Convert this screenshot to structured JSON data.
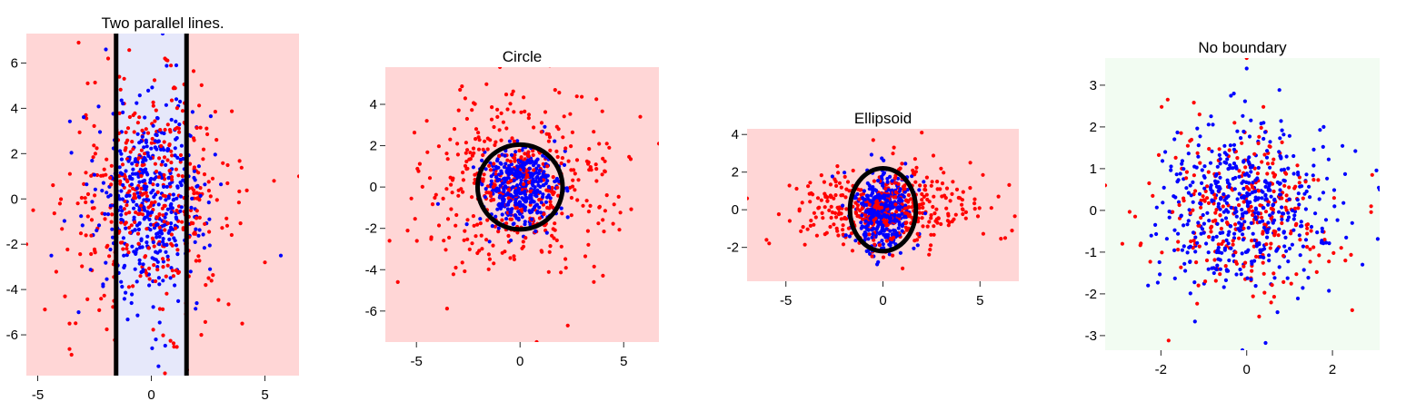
{
  "chart_data": [
    {
      "type": "scatter",
      "title": "Two parallel lines.",
      "xlim": [
        -5.5,
        6.5
      ],
      "ylim": [
        -7.8,
        7.3
      ],
      "xticks": [
        -5,
        0,
        5
      ],
      "xtick_labels": [
        "-5",
        "0",
        "5"
      ],
      "yticks": [
        -6,
        -4,
        -2,
        0,
        2,
        4,
        6
      ],
      "ytick_labels": [
        "-6",
        "-4",
        "-2",
        "0",
        "2",
        "4",
        "6"
      ],
      "background_color": "#FFD6D6",
      "region_color": "#E6E8FA",
      "boundary_color": "#000000",
      "region": {
        "shape": "vertical-band",
        "x": [
          -1.55,
          1.55
        ]
      },
      "boundary": {
        "shape": "vertical-lines",
        "x": [
          -1.55,
          1.55
        ]
      },
      "series": [
        {
          "color": "#FF0000",
          "distribution": {
            "sx": 1.8,
            "sy": 2.4,
            "cx": 0,
            "cy": 0
          },
          "count": 420,
          "points": [
            [
              -3.2,
              6.9
            ],
            [
              -2.8,
              5.1
            ],
            [
              -1.9,
              6.2
            ],
            [
              0.6,
              6.2
            ],
            [
              2.7,
              0.9
            ],
            [
              5.4,
              0.8
            ],
            [
              6.5,
              1.0
            ],
            [
              5.0,
              -2.8
            ],
            [
              4.0,
              -5.5
            ],
            [
              -5.5,
              -2.0
            ],
            [
              -5.2,
              -0.5
            ],
            [
              -3.8,
              -4.3
            ],
            [
              -3.6,
              -5.5
            ],
            [
              2.2,
              -6.0
            ],
            [
              0.6,
              -7.7
            ]
          ]
        },
        {
          "color": "#0000FF",
          "distribution": {
            "sx": 1.2,
            "sy": 2.2,
            "cx": 0,
            "cy": 0
          },
          "count": 420,
          "points": [
            [
              0.5,
              7.3
            ],
            [
              -2.0,
              6.6
            ],
            [
              1.1,
              5.9
            ],
            [
              5.7,
              -2.5
            ],
            [
              -3.2,
              -5.0
            ],
            [
              0.2,
              -6.2
            ],
            [
              2.0,
              -4.6
            ],
            [
              -4.4,
              -2.5
            ]
          ]
        }
      ]
    },
    {
      "type": "scatter",
      "title": "Circle",
      "xlim": [
        -6.5,
        6.7
      ],
      "ylim": [
        -7.5,
        5.8
      ],
      "xticks": [
        -5,
        0,
        5
      ],
      "xtick_labels": [
        "-5",
        "0",
        "5"
      ],
      "yticks": [
        -6,
        -4,
        -2,
        0,
        2,
        4
      ],
      "ytick_labels": [
        "-6",
        "-4",
        "-2",
        "0",
        "2",
        "4"
      ],
      "background_color": "#FFD6D6",
      "boundary_color": "#000000",
      "boundary": {
        "shape": "ellipse",
        "cx": 0,
        "cy": 0,
        "rx": 2.05,
        "ry": 2.05
      },
      "series": [
        {
          "color": "#FF0000",
          "distribution": {
            "sx": 2.2,
            "sy": 2.2,
            "cx": 0,
            "cy": 0
          },
          "count": 420,
          "points": [
            [
              6.7,
              2.1
            ],
            [
              -5.9,
              -4.6
            ],
            [
              -6.3,
              -2.6
            ],
            [
              0.8,
              -7.5
            ],
            [
              2.3,
              -6.7
            ],
            [
              4.3,
              1.9
            ],
            [
              5.8,
              3.4
            ],
            [
              -4.5,
              3.2
            ],
            [
              -3.1,
              -3.9
            ]
          ]
        },
        {
          "color": "#0000FF",
          "distribution": {
            "sx": 0.9,
            "sy": 0.9,
            "cx": 0,
            "cy": 0
          },
          "count": 420,
          "points": []
        }
      ]
    },
    {
      "type": "scatter",
      "title": "Ellipsoid",
      "xlim": [
        -7.0,
        7.0
      ],
      "ylim": [
        -3.8,
        4.3
      ],
      "xticks": [
        -5,
        0,
        5
      ],
      "xtick_labels": [
        "-5",
        "0",
        "5"
      ],
      "yticks": [
        -2,
        0,
        2,
        4
      ],
      "ytick_labels": [
        "-2",
        "0",
        "2",
        "4"
      ],
      "background_color": "#FFD6D6",
      "boundary_color": "#000000",
      "boundary": {
        "shape": "ellipse",
        "cx": 0,
        "cy": 0,
        "rx": 1.7,
        "ry": 2.2
      },
      "series": [
        {
          "color": "#FF0000",
          "distribution": {
            "sx": 2.3,
            "sy": 1.1,
            "cx": 0,
            "cy": 0
          },
          "count": 420,
          "points": [
            [
              -7.0,
              0.6
            ],
            [
              6.3,
              -1.5
            ],
            [
              -6.0,
              -1.6
            ],
            [
              4.5,
              2.5
            ],
            [
              2.0,
              4.1
            ],
            [
              -0.5,
              3.7
            ]
          ]
        },
        {
          "color": "#0000FF",
          "distribution": {
            "sx": 0.8,
            "sy": 1.0,
            "cx": 0,
            "cy": 0
          },
          "count": 420,
          "points": []
        }
      ]
    },
    {
      "type": "scatter",
      "title": "No boundary",
      "xlim": [
        -3.3,
        3.1
      ],
      "ylim": [
        -3.35,
        3.65
      ],
      "xticks": [
        -2,
        0,
        2
      ],
      "xtick_labels": [
        "-2",
        "0",
        "2"
      ],
      "yticks": [
        -3,
        -2,
        -1,
        0,
        1,
        2,
        3
      ],
      "ytick_labels": [
        "-3",
        "-2",
        "-1",
        "0",
        "1",
        "2",
        "3"
      ],
      "background_color": "#F2FCF2",
      "series": [
        {
          "color": "#FF0000",
          "distribution": {
            "sx": 1.0,
            "sy": 1.0,
            "cx": 0,
            "cy": 0
          },
          "count": 300,
          "points": [
            [
              0,
              3.65
            ],
            [
              -3.3,
              0.6
            ],
            [
              2.9,
              0.1
            ],
            [
              -1.1,
              2.3
            ],
            [
              -2.9,
              -0.8
            ],
            [
              2.3,
              -1.2
            ]
          ]
        },
        {
          "color": "#0000FF",
          "distribution": {
            "sx": 1.0,
            "sy": 1.0,
            "cx": 0,
            "cy": 0
          },
          "count": 500,
          "points": [
            [
              -0.3,
              2.8
            ],
            [
              0.0,
              3.4
            ],
            [
              3.1,
              0.5
            ],
            [
              -1.9,
              1.4
            ],
            [
              -0.1,
              -3.35
            ],
            [
              -2.3,
              -1.8
            ],
            [
              2.7,
              -1.3
            ]
          ]
        }
      ]
    }
  ]
}
